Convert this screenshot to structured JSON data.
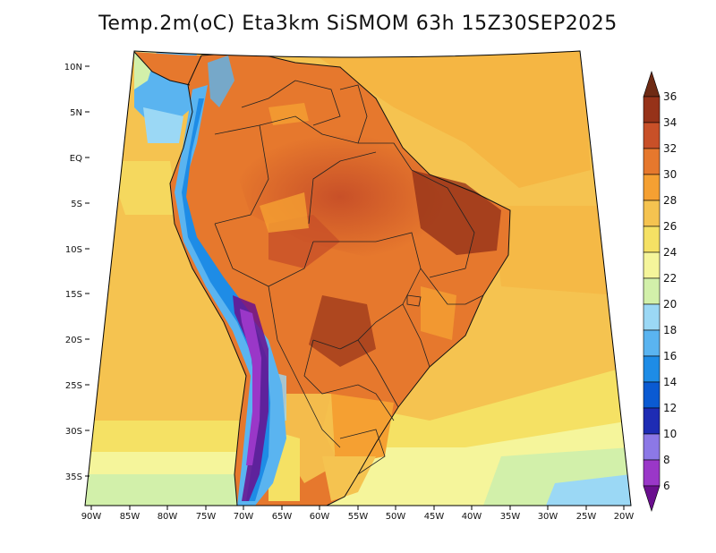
{
  "title": "Temp.2m(oC) Eta3km SiSMOM 63h 15Z30SEP2025",
  "map": {
    "lat_labels": [
      "10N",
      "5N",
      "EQ",
      "5S",
      "10S",
      "15S",
      "20S",
      "25S",
      "30S",
      "35S"
    ],
    "lon_labels": [
      "90W",
      "85W",
      "80W",
      "75W",
      "70W",
      "65W",
      "60W",
      "55W",
      "50W",
      "45W",
      "40W",
      "35W",
      "30W",
      "25W",
      "20W"
    ],
    "lat_range": [
      -38,
      11
    ],
    "lon_range": [
      -91,
      -20
    ]
  },
  "colorbar": {
    "labels": [
      "6",
      "8",
      "10",
      "12",
      "14",
      "16",
      "18",
      "20",
      "22",
      "24",
      "26",
      "28",
      "30",
      "32",
      "34",
      "36"
    ],
    "colors": [
      "#6a0f8e",
      "#9a37c8",
      "#8c78e6",
      "#1e2cb4",
      "#0a5ad2",
      "#1e8ce6",
      "#5ab4f0",
      "#9bd8f5",
      "#d2f0aa",
      "#f5f59b",
      "#f5e164",
      "#f5c350",
      "#f5a032",
      "#e6782d",
      "#c85028",
      "#963219",
      "#6e2a14"
    ],
    "unit": "oC"
  }
}
